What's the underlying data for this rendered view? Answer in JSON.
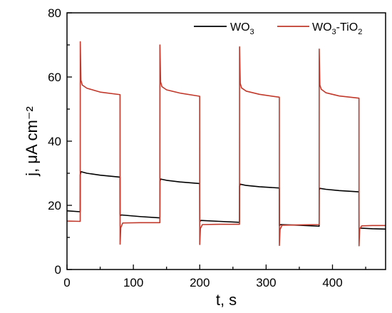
{
  "chart_data": {
    "type": "line",
    "xlabel": "t, s",
    "ylabel": "j, μA cm⁻²",
    "xlim": [
      0,
      480
    ],
    "ylim": [
      0,
      80
    ],
    "x_ticks": [
      0,
      100,
      200,
      300,
      400
    ],
    "y_ticks": [
      0,
      20,
      40,
      60,
      80
    ],
    "grid": false,
    "legend_position": "top-right",
    "series": [
      {
        "name": "WO3",
        "name_main": "WO",
        "name_sub": "3",
        "color": "#000000",
        "points": [
          [
            0,
            18.3
          ],
          [
            19.9,
            18.0
          ],
          [
            20,
            29.5
          ],
          [
            21,
            30.5
          ],
          [
            30,
            30.0
          ],
          [
            50,
            29.4
          ],
          [
            79.9,
            28.8
          ],
          [
            80,
            16.8
          ],
          [
            82,
            17.0
          ],
          [
            110,
            16.5
          ],
          [
            139.9,
            16.1
          ],
          [
            140,
            27.5
          ],
          [
            141,
            28.2
          ],
          [
            150,
            27.8
          ],
          [
            170,
            27.3
          ],
          [
            199.9,
            26.8
          ],
          [
            200,
            15.0
          ],
          [
            202,
            15.3
          ],
          [
            230,
            15.0
          ],
          [
            259.9,
            14.7
          ],
          [
            260,
            26.0
          ],
          [
            261,
            26.6
          ],
          [
            270,
            26.2
          ],
          [
            290,
            25.8
          ],
          [
            319.9,
            25.4
          ],
          [
            320,
            13.7
          ],
          [
            322,
            14.0
          ],
          [
            350,
            13.8
          ],
          [
            379.9,
            13.5
          ],
          [
            380,
            24.8
          ],
          [
            381,
            25.3
          ],
          [
            390,
            25.0
          ],
          [
            410,
            24.6
          ],
          [
            439.9,
            24.2
          ],
          [
            440,
            12.7
          ],
          [
            442,
            12.9
          ],
          [
            460,
            12.7
          ],
          [
            480,
            12.6
          ]
        ]
      },
      {
        "name": "WO3-TiO2",
        "name_main": "WO",
        "name_sub": "3",
        "name_main2": "-TiO",
        "name_sub2": "2",
        "color": "#c0392b",
        "points": [
          [
            0,
            15.1
          ],
          [
            19.9,
            15.0
          ],
          [
            20,
            71.0
          ],
          [
            21,
            59.0
          ],
          [
            23,
            57.5
          ],
          [
            30,
            56.5
          ],
          [
            50,
            55.3
          ],
          [
            79.9,
            54.5
          ],
          [
            80,
            7.9
          ],
          [
            81,
            13.0
          ],
          [
            84,
            14.5
          ],
          [
            110,
            14.6
          ],
          [
            139.9,
            14.6
          ],
          [
            140,
            70.0
          ],
          [
            141,
            58.5
          ],
          [
            143,
            57.0
          ],
          [
            150,
            56.0
          ],
          [
            170,
            55.0
          ],
          [
            199.9,
            54.0
          ],
          [
            200,
            7.8
          ],
          [
            201,
            12.8
          ],
          [
            204,
            14.0
          ],
          [
            230,
            14.1
          ],
          [
            259.9,
            14.1
          ],
          [
            260,
            69.4
          ],
          [
            261,
            58.0
          ],
          [
            263,
            56.6
          ],
          [
            270,
            55.6
          ],
          [
            290,
            54.6
          ],
          [
            319.9,
            53.7
          ],
          [
            320,
            7.5
          ],
          [
            321,
            12.5
          ],
          [
            324,
            13.8
          ],
          [
            350,
            13.9
          ],
          [
            379.9,
            14.0
          ],
          [
            380,
            68.7
          ],
          [
            381,
            57.5
          ],
          [
            383,
            56.2
          ],
          [
            390,
            55.1
          ],
          [
            410,
            54.1
          ],
          [
            439.9,
            53.4
          ],
          [
            440,
            7.4
          ],
          [
            441,
            12.6
          ],
          [
            444,
            13.6
          ],
          [
            460,
            13.7
          ],
          [
            480,
            13.7
          ]
        ]
      }
    ]
  }
}
